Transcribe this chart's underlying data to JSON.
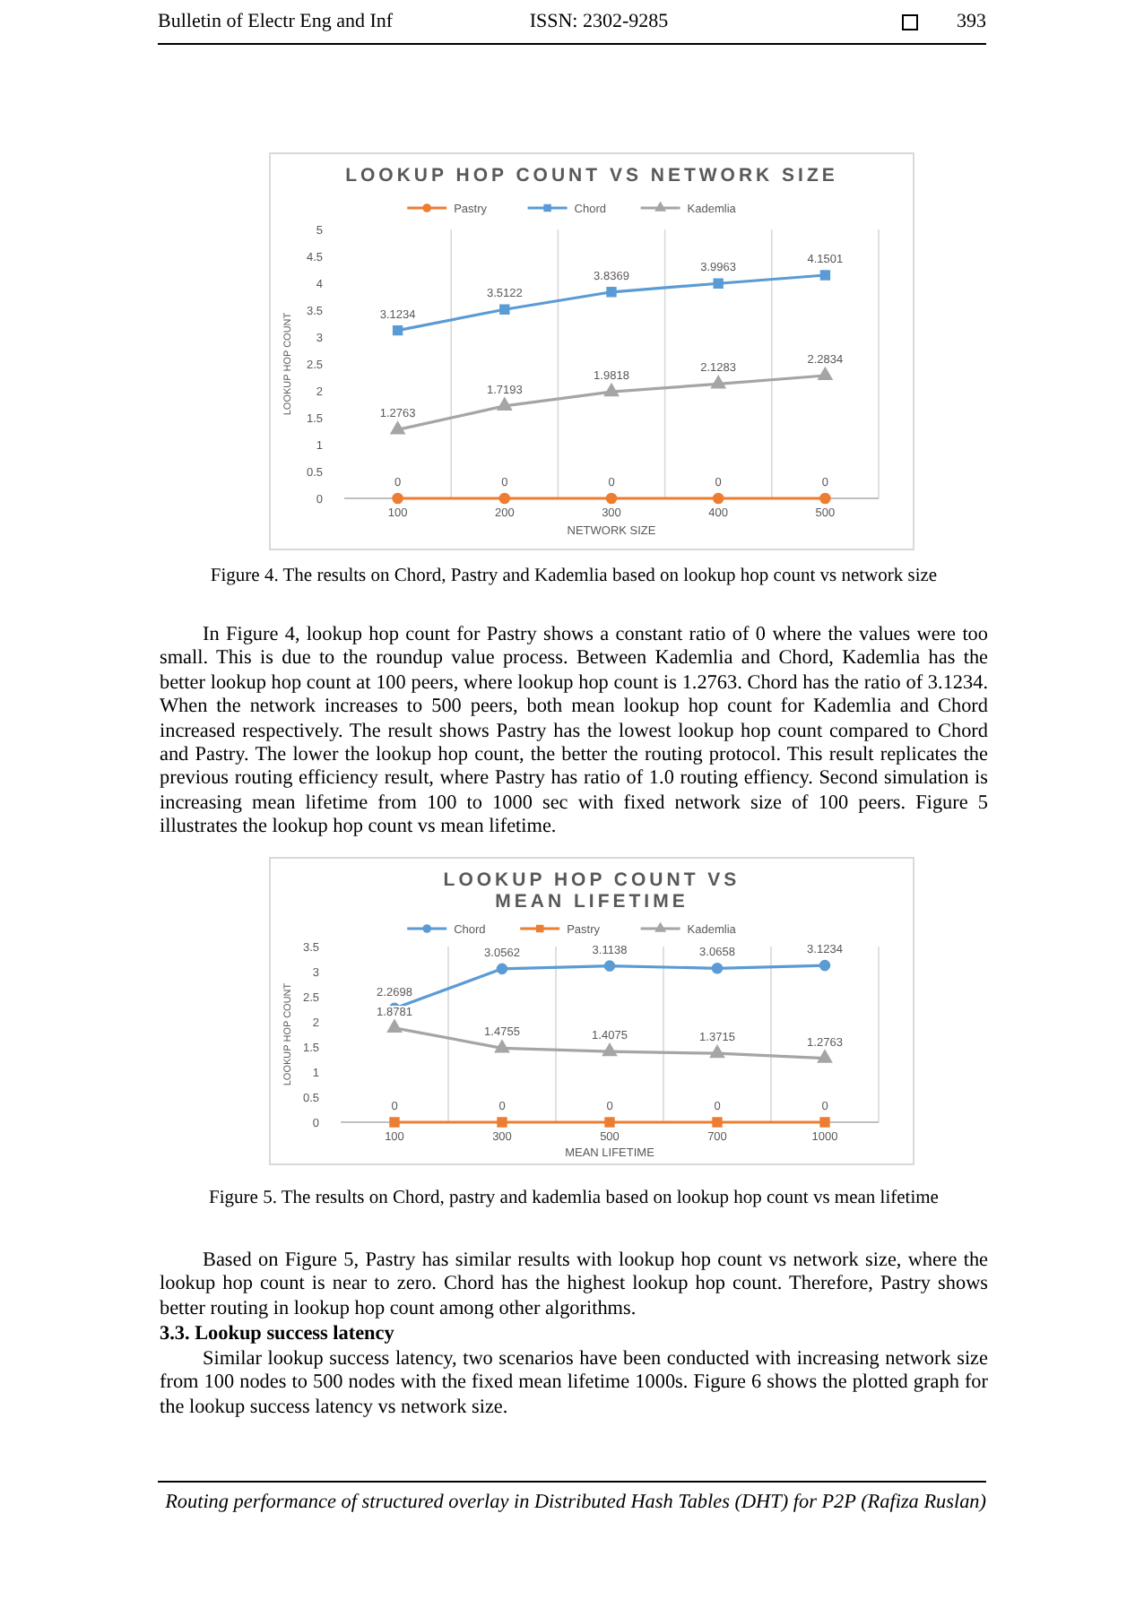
{
  "chart_data": [
    {
      "type": "line",
      "title": "LOOKUP HOP COUNT VS NETWORK SIZE",
      "xlabel": "NETWORK SIZE",
      "ylabel": "LOOKUP HOP COUNT",
      "categories": [
        "100",
        "200",
        "300",
        "400",
        "500"
      ],
      "series": [
        {
          "name": "Pastry",
          "color": "#ed7d31",
          "marker": "circle",
          "values": [
            0,
            0,
            0,
            0,
            0
          ]
        },
        {
          "name": "Chord",
          "color": "#5b9bd5",
          "marker": "square",
          "values": [
            3.1234,
            3.5122,
            3.8369,
            3.9963,
            4.1501
          ]
        },
        {
          "name": "Kademlia",
          "color": "#a5a5a5",
          "marker": "triangle",
          "values": [
            1.2763,
            1.7193,
            1.9818,
            2.1283,
            2.2834
          ]
        }
      ],
      "ylim": [
        0,
        5
      ],
      "yticks": [
        0,
        0.5,
        1,
        1.5,
        2,
        2.5,
        3,
        3.5,
        4,
        4.5,
        5
      ],
      "grid": "x",
      "legend": "top",
      "data_labels": true,
      "annotations": [
        "Bulletin of Electr Eng and Inf",
        "ISSN: 2302-9285",
        "393",
        "Figure 4. The results on Chord, Pastry and Kademlia based on lookup hop count vs network size",
        "In Figure 4, lookup hop count for Pastry shows a constant ratio of 0 where the values were too small. This is due to the roundup value process. Between Kademlia and Chord, Kademlia has the better lookup hop count at 100 peers, where lookup hop count is 1.2763. Chord has the ratio of 3.1234. When the network increases to 500 peers, both mean lookup hop count for Kademlia and Chord increased respectively. The result shows Pastry has the lowest lookup hop count compared to Chord and Pastry. The lower the lookup hop count, the better the routing protocol. This result replicates the previous routing efficiency result, where Pastry has ratio of 1.0 routing effiency. Second simulation is increasing mean lifetime from 100 to 1000 sec with fixed network size of 100 peers. Figure 5 illustrates the lookup hop count vs mean lifetime."
      ]
    },
    {
      "type": "line",
      "title": "LOOKUP HOP COUNT VS MEAN LIFETIME",
      "xlabel": "MEAN LIFETIME",
      "ylabel": "LOOKUP HOP COUNT",
      "categories": [
        "100",
        "300",
        "500",
        "700",
        "1000"
      ],
      "series": [
        {
          "name": "Chord",
          "color": "#5b9bd5",
          "marker": "circle",
          "values": [
            2.2698,
            3.0562,
            3.1138,
            3.0658,
            3.1234
          ]
        },
        {
          "name": "Pastry",
          "color": "#ed7d31",
          "marker": "square",
          "values": [
            0,
            0,
            0,
            0,
            0
          ]
        },
        {
          "name": "Kademlia",
          "color": "#a5a5a5",
          "marker": "triangle",
          "values": [
            1.8781,
            1.4755,
            1.4075,
            1.3715,
            1.2763
          ]
        }
      ],
      "ylim": [
        0,
        3.5
      ],
      "yticks": [
        0,
        0.5,
        1,
        1.5,
        2,
        2.5,
        3,
        3.5
      ],
      "grid": "x",
      "legend": "top",
      "data_labels": true,
      "annotations": [
        "Figure 5. The results on Chord, pastry and kademlia based on lookup hop count vs mean lifetime",
        "Based on Figure 5, Pastry has similar results with lookup hop count vs network size, where the lookup hop count is near to zero. Chord has the highest lookup hop count. Therefore, Pastry shows better routing in lookup hop count among other algorithms.",
        "3.3. Lookup success latency",
        "Similar lookup success latency, two scenarios have been conducted with increasing network size from 100 nodes to 500 nodes with the fixed mean lifetime 1000s. Figure 6 shows the plotted graph for the lookup success latency vs network size.",
        "Routing performance of structured overlay in Distributed Hash Tables (DHT) for P2P (Rafiza Ruslan)"
      ]
    }
  ]
}
